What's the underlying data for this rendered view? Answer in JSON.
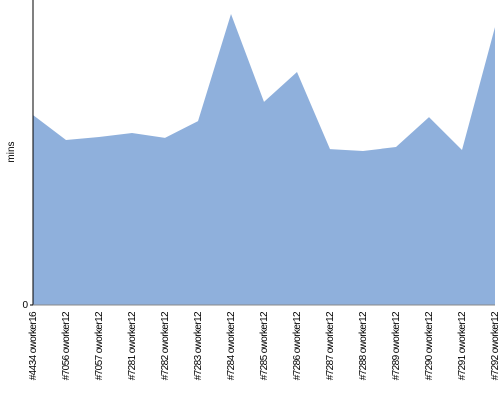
{
  "chart_data": {
    "type": "area",
    "categories": [
      "#4434 oworker16",
      "#7056 oworker12",
      "#7057 oworker12",
      "#7281 oworker12",
      "#7282 oworker12",
      "#7283 oworker12",
      "#7284 oworker12",
      "#7285 oworker12",
      "#7286 oworker12",
      "#7287 oworker12",
      "#7288 oworker12",
      "#7289 oworker12",
      "#7290 oworker12",
      "#7291 oworker12",
      "#7292 oworker12"
    ],
    "values": [
      62.3,
      54.1,
      55.1,
      56.4,
      54.8,
      60.3,
      95.4,
      66.6,
      76.4,
      51.1,
      50.5,
      51.8,
      61.6,
      50.8,
      91.1
    ],
    "color": "#8fb0dc",
    "y_label": "mins",
    "ylim": [
      0,
      100
    ],
    "yticks": [
      0
    ]
  }
}
